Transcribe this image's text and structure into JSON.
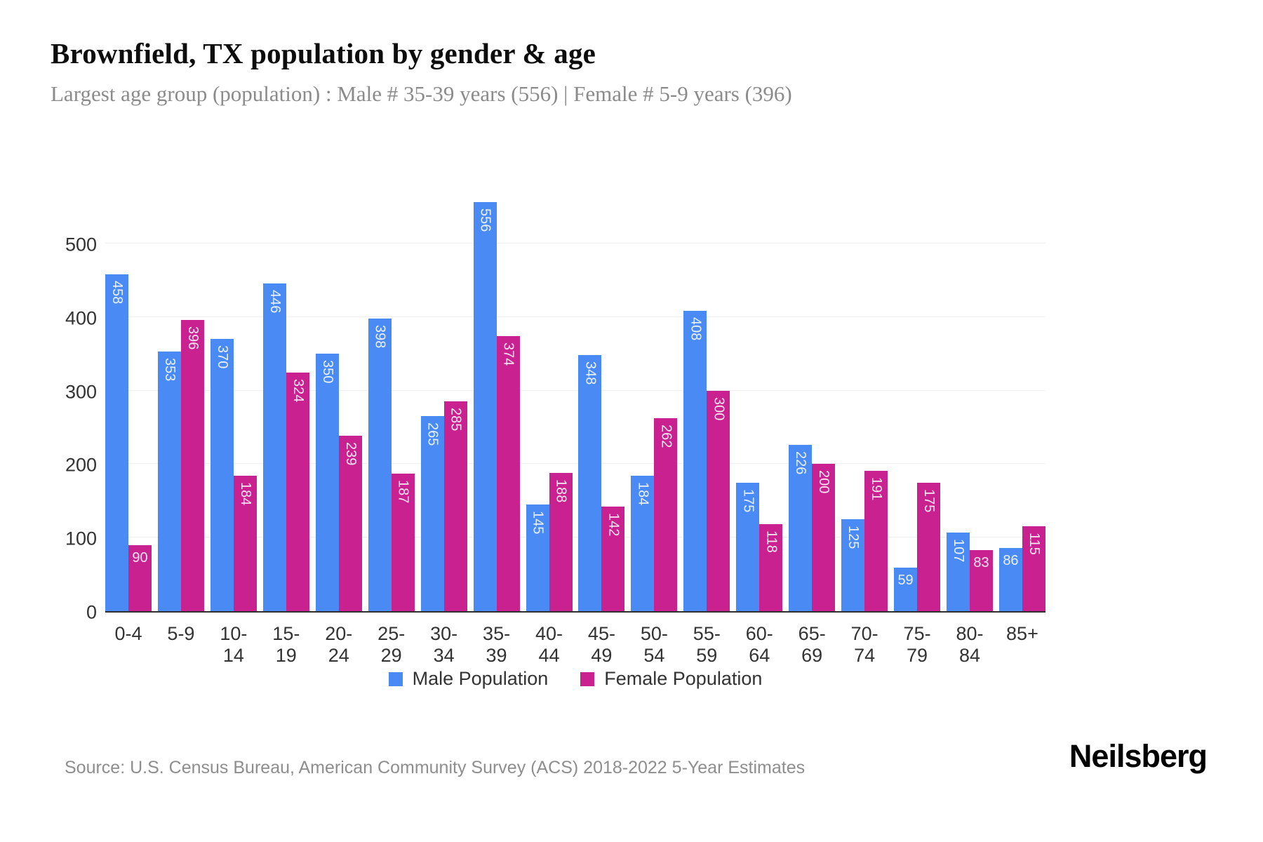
{
  "header": {
    "title": "Brownfield, TX population by gender & age",
    "subtitle": "Largest age group (population) : Male # 35-39 years (556) | Female # 5-9 years (396)"
  },
  "chart_data": {
    "type": "bar",
    "title": "Brownfield, TX population by gender & age",
    "categories": [
      "0-4",
      "5-9",
      "10-14",
      "15-19",
      "20-24",
      "25-29",
      "30-34",
      "35-39",
      "40-44",
      "45-49",
      "50-54",
      "55-59",
      "60-64",
      "65-69",
      "70-74",
      "75-79",
      "80-84",
      "85+"
    ],
    "series": [
      {
        "name": "Male Population",
        "color": "#4a8af4",
        "values": [
          458,
          353,
          370,
          446,
          350,
          398,
          265,
          556,
          145,
          348,
          184,
          408,
          175,
          226,
          125,
          59,
          107,
          86
        ]
      },
      {
        "name": "Female Population",
        "color": "#c92190",
        "values": [
          90,
          396,
          184,
          324,
          239,
          187,
          285,
          374,
          188,
          142,
          262,
          300,
          118,
          200,
          191,
          175,
          83,
          115
        ]
      }
    ],
    "xlabel": "",
    "ylabel": "",
    "yticks": [
      0,
      100,
      200,
      300,
      400,
      500
    ],
    "ylim": [
      0,
      556
    ],
    "grid": true,
    "legend_position": "bottom",
    "bar_label_color": "#ffffff",
    "grid_color": "#efefef",
    "axis_line_color": "#2f2f2f"
  },
  "footer": {
    "source": "Source: U.S. Census Bureau, American Community Survey (ACS) 2018-2022 5-Year Estimates",
    "logo": "Neilsberg"
  }
}
